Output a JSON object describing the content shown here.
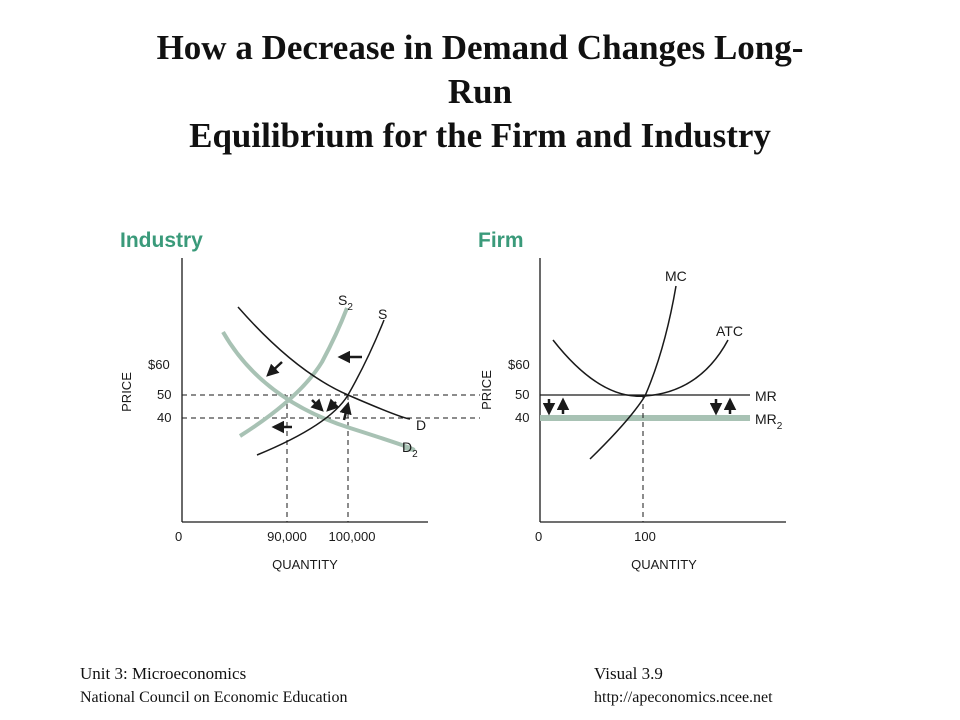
{
  "title": {
    "line1": "How a Decrease in Demand Changes Long-",
    "line2": "Run",
    "line3": "Equilibrium for the Firm and Industry"
  },
  "industry": {
    "panel_title": "Industry",
    "y_axis_label": "PRICE",
    "x_axis_label": "QUANTITY",
    "y_ticks": [
      "$60",
      "50",
      "40"
    ],
    "x_ticks": [
      "0",
      "90,000",
      "100,000"
    ],
    "curves": {
      "supply": "S",
      "supply_new_base": "S",
      "supply_new_sub": "2",
      "demand": "D",
      "demand_new_base": "D",
      "demand_new_sub": "2"
    }
  },
  "firm": {
    "panel_title": "Firm",
    "y_axis_label": "PRICE",
    "x_axis_label": "QUANTITY",
    "y_ticks": [
      "$60",
      "50",
      "40"
    ],
    "x_ticks": [
      "0",
      "100"
    ],
    "curves": {
      "mc": "MC",
      "atc": "ATC",
      "mr": "MR",
      "mr_new_base": "MR",
      "mr_new_sub": "2"
    }
  },
  "colors": {
    "panel_title": "#3a9a7a",
    "new_curve": "#a8c2b4",
    "line": "#1a1a1a"
  },
  "footer": {
    "unit": "Unit 3: Microeconomics",
    "council": "National Council on Economic Education",
    "visual": "Visual 3.9",
    "url": "http://apeconomics.ncee.net"
  }
}
